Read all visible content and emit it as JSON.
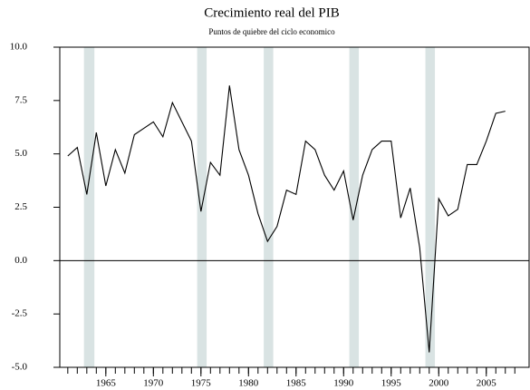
{
  "chart_data": {
    "type": "line",
    "title": "Crecimiento real del PIB",
    "subtitle": "Puntos de quiebre del ciclo economico",
    "x": [
      1961,
      1962,
      1963,
      1964,
      1965,
      1966,
      1967,
      1968,
      1969,
      1970,
      1971,
      1972,
      1973,
      1974,
      1975,
      1976,
      1977,
      1978,
      1979,
      1980,
      1981,
      1982,
      1983,
      1984,
      1985,
      1986,
      1987,
      1988,
      1989,
      1990,
      1991,
      1992,
      1993,
      1994,
      1995,
      1996,
      1997,
      1998,
      1999,
      2000,
      2001,
      2002,
      2003,
      2004,
      2005,
      2006,
      2007
    ],
    "values": [
      4.9,
      5.3,
      3.1,
      6.0,
      3.5,
      5.2,
      4.1,
      5.9,
      6.2,
      6.5,
      5.8,
      7.4,
      6.5,
      5.6,
      2.3,
      4.6,
      4.0,
      8.2,
      5.2,
      4.0,
      2.2,
      0.9,
      1.6,
      3.3,
      3.1,
      5.6,
      5.2,
      4.0,
      3.3,
      4.2,
      1.9,
      4.0,
      5.2,
      5.6,
      5.6,
      2.0,
      3.4,
      0.6,
      -4.3,
      2.9,
      2.1,
      2.4,
      4.5,
      4.5,
      5.6,
      6.9,
      7.0
    ],
    "color": "#000000",
    "shaded_periods": [
      [
        1962.7,
        1963.8
      ],
      [
        1974.6,
        1975.6
      ],
      [
        1981.6,
        1982.6
      ],
      [
        1990.6,
        1991.6
      ],
      [
        1998.6,
        1999.6
      ]
    ],
    "shade_color": "#d9e3e3",
    "xlim": [
      1960.16,
      2009.5
    ],
    "xticks": [
      1965,
      1970,
      1975,
      1980,
      1985,
      1990,
      1995,
      2000,
      2005
    ],
    "xminor_ticks": [
      1961,
      1962,
      1963,
      1964,
      1965,
      1966,
      1967,
      1968,
      1969,
      1970,
      1971,
      1972,
      1973,
      1974,
      1975,
      1976,
      1977,
      1978,
      1979,
      1980,
      1981,
      1982,
      1983,
      1984,
      1985,
      1986,
      1987,
      1988,
      1989,
      1990,
      1991,
      1992,
      1993,
      1994,
      1995,
      1996,
      1997,
      1998,
      1999,
      2000,
      2001,
      2002,
      2003,
      2004,
      2005,
      2006,
      2007,
      2008
    ],
    "ylim": [
      -5,
      10
    ],
    "yticks": [
      {
        "value": -5,
        "label": "-5.0"
      },
      {
        "value": -2.5,
        "label": "-2.5"
      },
      {
        "value": 0,
        "label": "0.0"
      },
      {
        "value": 2.5,
        "label": "2.5"
      },
      {
        "value": 5,
        "label": "5.0"
      },
      {
        "value": 7.5,
        "label": "7.5"
      },
      {
        "value": 10,
        "label": "10.0"
      }
    ],
    "zero_line": true,
    "grid": false
  }
}
